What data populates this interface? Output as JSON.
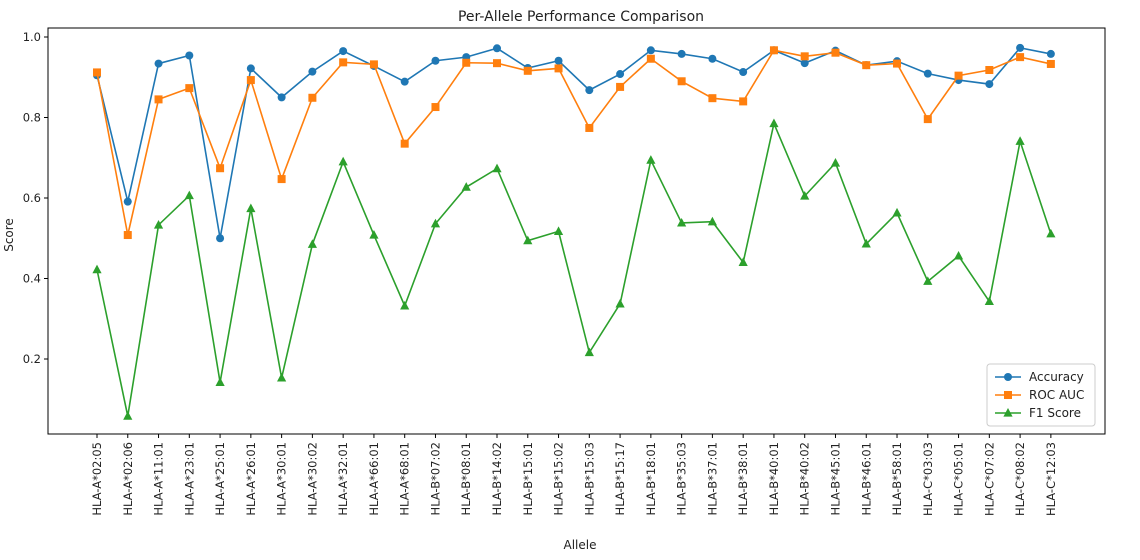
{
  "chart_data": {
    "type": "line",
    "title": "Per-Allele Performance Comparison",
    "xlabel": "Allele",
    "ylabel": "Score",
    "ylim": [
      0,
      1.0
    ],
    "yticks": [
      "0.2",
      "0.4",
      "0.6",
      "0.8",
      "1.0"
    ],
    "grid": false,
    "legend_position": "bottom-right",
    "categories": [
      "HLA-A*02:05",
      "HLA-A*02:06",
      "HLA-A*11:01",
      "HLA-A*23:01",
      "HLA-A*25:01",
      "HLA-A*26:01",
      "HLA-A*30:01",
      "HLA-A*30:02",
      "HLA-A*32:01",
      "HLA-A*66:01",
      "HLA-A*68:01",
      "HLA-B*07:02",
      "HLA-B*08:01",
      "HLA-B*14:02",
      "HLA-B*15:01",
      "HLA-B*15:02",
      "HLA-B*15:03",
      "HLA-B*15:17",
      "HLA-B*18:01",
      "HLA-B*35:03",
      "HLA-B*37:01",
      "HLA-B*38:01",
      "HLA-B*40:01",
      "HLA-B*40:02",
      "HLA-B*45:01",
      "HLA-B*46:01",
      "HLA-B*58:01",
      "HLA-C*03:03",
      "HLA-C*05:01",
      "HLA-C*07:02",
      "HLA-C*08:02",
      "HLA-C*12:03"
    ],
    "series": [
      {
        "name": "Accuracy",
        "color": "#1f77b4",
        "marker": "circle",
        "values": [
          0.905,
          0.591,
          0.934,
          0.954,
          0.5,
          0.922,
          0.85,
          0.914,
          0.965,
          0.928,
          0.889,
          0.941,
          0.95,
          0.972,
          0.923,
          0.941,
          0.868,
          0.908,
          0.967,
          0.958,
          0.946,
          0.913,
          0.967,
          0.935,
          0.966,
          0.93,
          0.94,
          0.909,
          0.893,
          0.883,
          0.973,
          0.958
        ]
      },
      {
        "name": "ROC AUC",
        "color": "#ff7f0e",
        "marker": "square",
        "values": [
          0.912,
          0.508,
          0.845,
          0.873,
          0.674,
          0.893,
          0.647,
          0.849,
          0.937,
          0.932,
          0.735,
          0.826,
          0.936,
          0.935,
          0.916,
          0.922,
          0.774,
          0.876,
          0.946,
          0.89,
          0.848,
          0.84,
          0.967,
          0.952,
          0.961,
          0.93,
          0.934,
          0.796,
          0.904,
          0.918,
          0.95,
          0.933
        ]
      },
      {
        "name": "F1 Score",
        "color": "#2ca02c",
        "marker": "triangle",
        "values": [
          0.422,
          0.058,
          0.533,
          0.606,
          0.142,
          0.574,
          0.153,
          0.485,
          0.69,
          0.508,
          0.332,
          0.536,
          0.627,
          0.673,
          0.494,
          0.517,
          0.216,
          0.337,
          0.694,
          0.538,
          0.541,
          0.44,
          0.785,
          0.605,
          0.687,
          0.486,
          0.563,
          0.393,
          0.456,
          0.343,
          0.741,
          0.511
        ]
      }
    ]
  }
}
